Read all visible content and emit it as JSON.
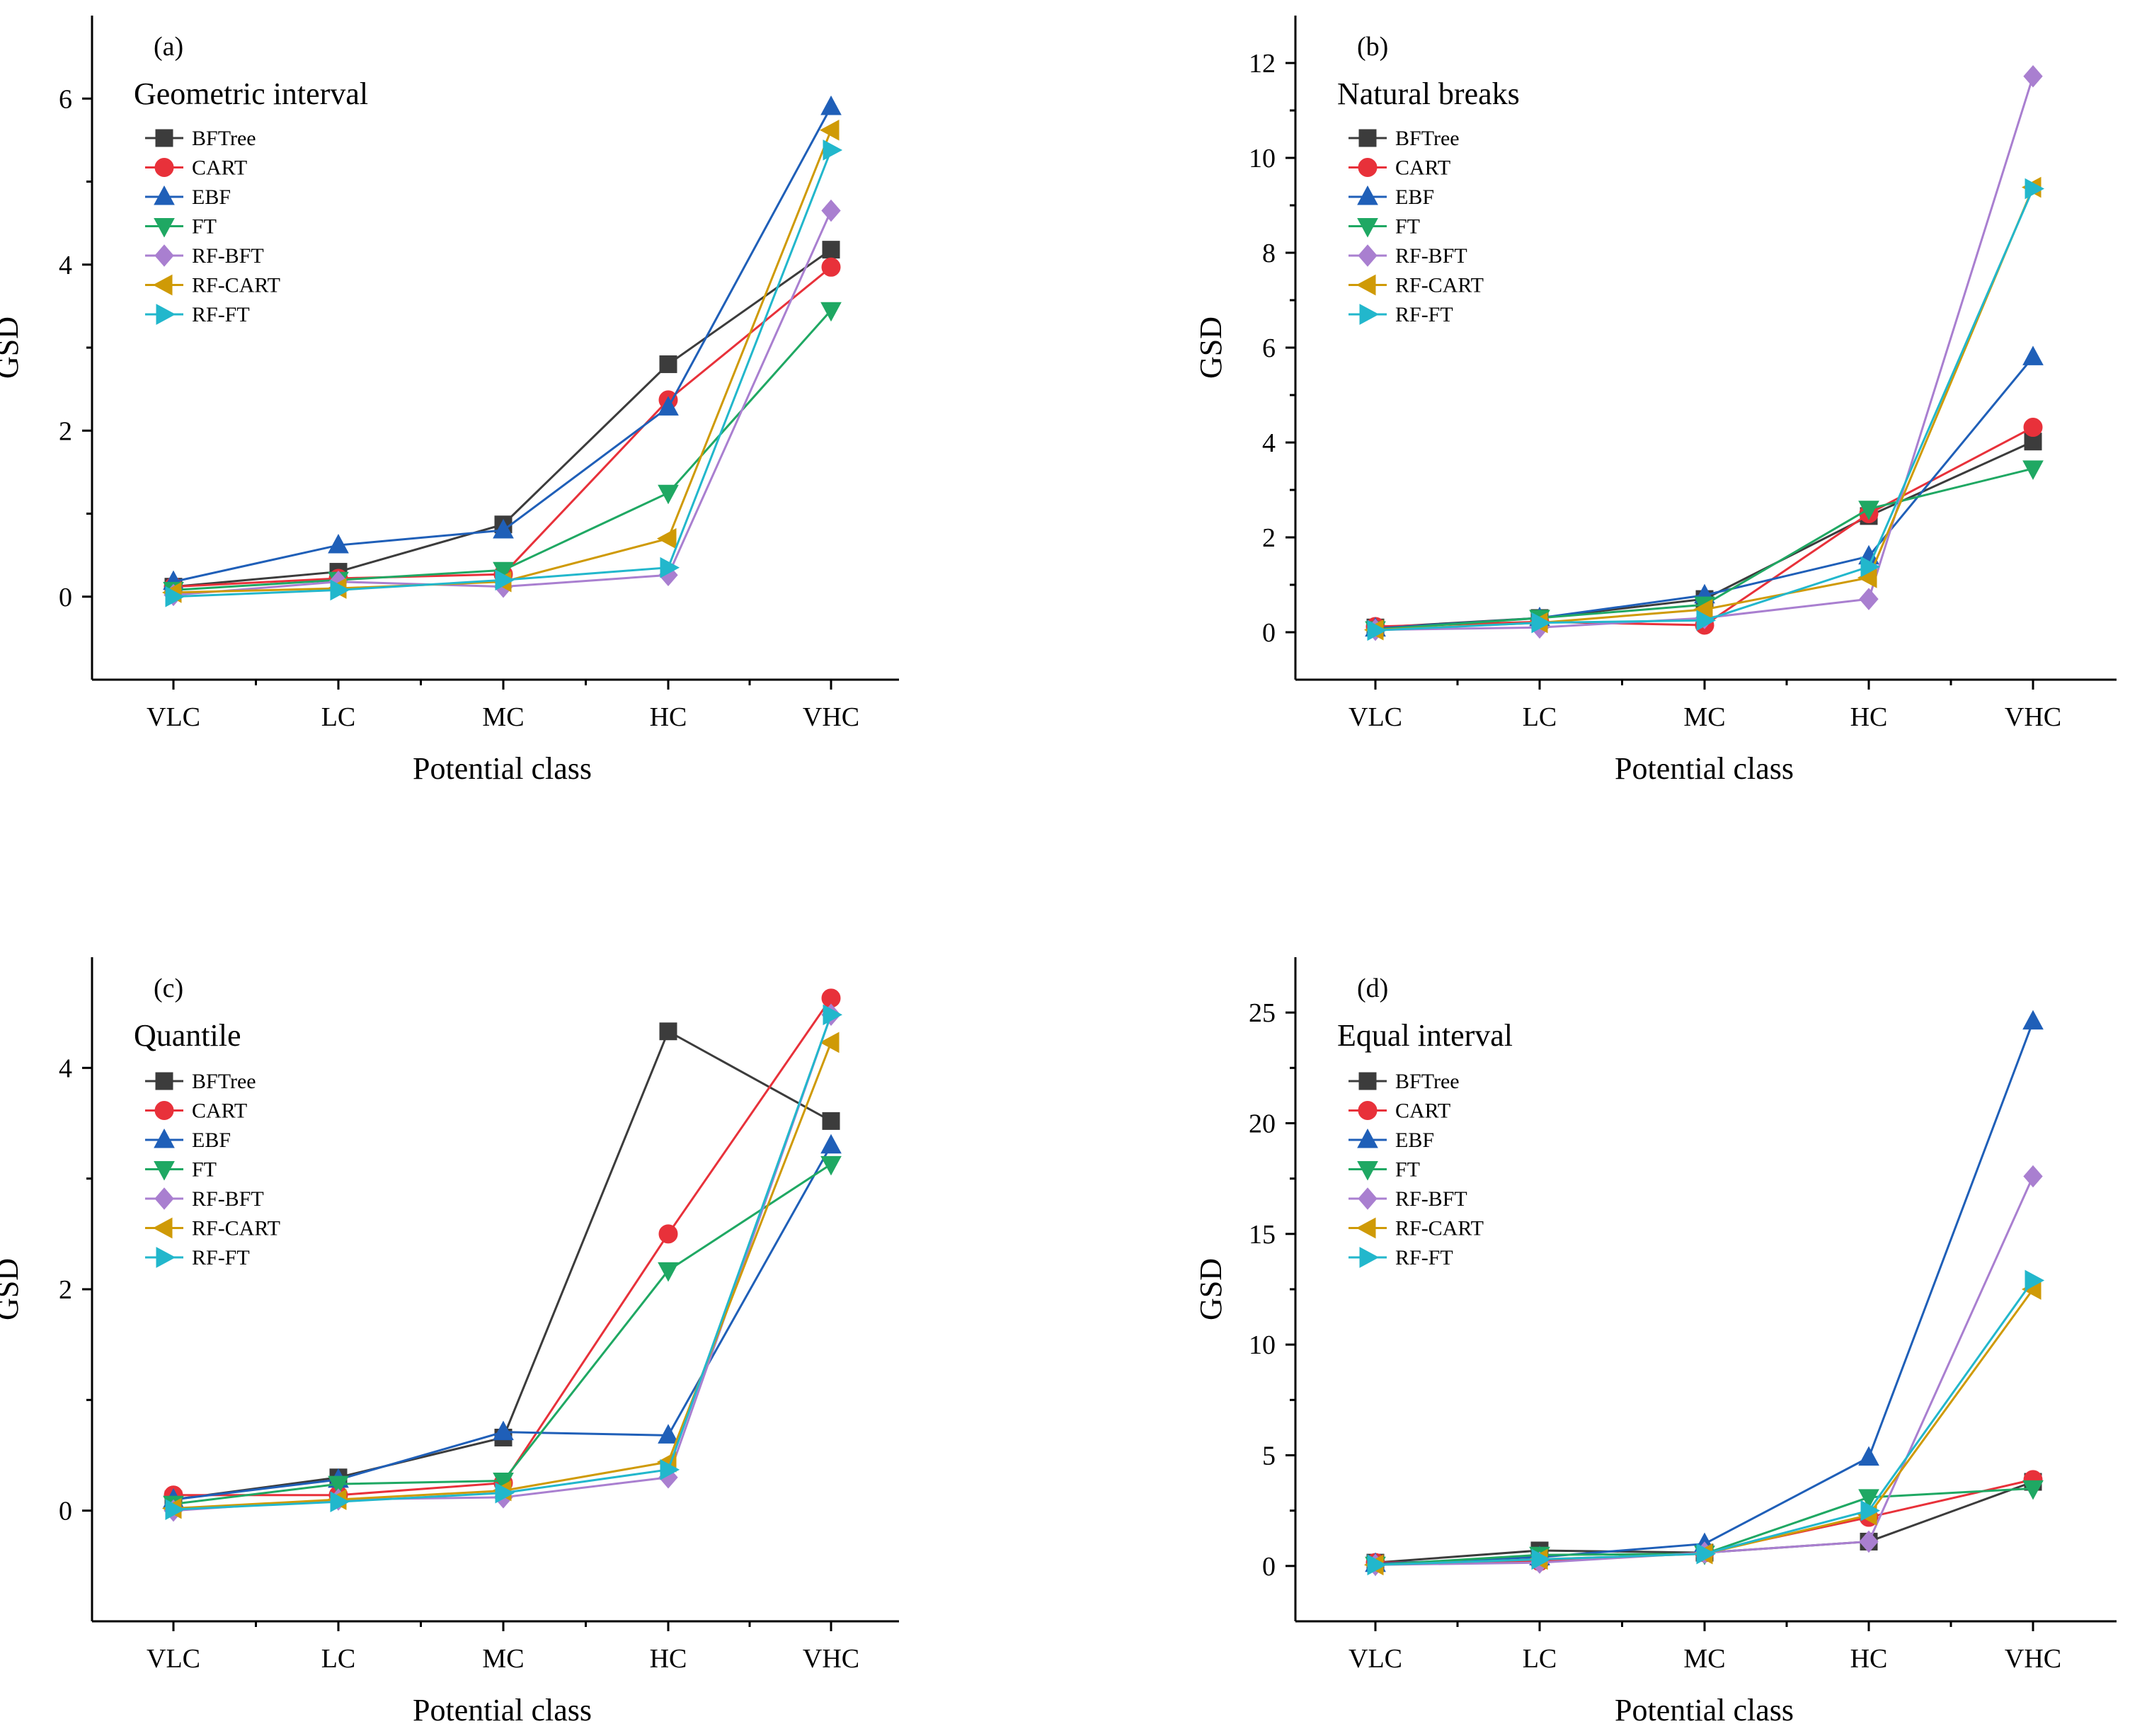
{
  "colors": {
    "BFTree": "#3c3c3c",
    "CART": "#e8313a",
    "EBF": "#1f5fb8",
    "FT": "#1fa863",
    "RF-BFT": "#a97fd0",
    "RF-CART": "#cf9a06",
    "RF-FT": "#22b7cc"
  },
  "chart_data": [
    {
      "type": "line",
      "panel": "(a)",
      "title": "Geometric interval",
      "xlabel": "Potential class",
      "ylabel": "GSD",
      "categories": [
        "VLC",
        "LC",
        "MC",
        "HC",
        "VHC"
      ],
      "ylim": [
        -1,
        7
      ],
      "yticks": [
        0,
        2,
        4,
        6
      ],
      "yticks_minor": [
        1,
        3,
        5
      ],
      "series": [
        {
          "name": "BFTree",
          "marker": "square",
          "values": [
            0.12,
            0.3,
            0.87,
            2.8,
            4.18
          ]
        },
        {
          "name": "CART",
          "marker": "circle",
          "values": [
            0.12,
            0.22,
            0.27,
            2.37,
            3.97
          ]
        },
        {
          "name": "EBF",
          "marker": "triangle-up",
          "values": [
            0.18,
            0.62,
            0.8,
            2.28,
            5.9
          ]
        },
        {
          "name": "FT",
          "marker": "triangle-down",
          "values": [
            0.08,
            0.2,
            0.32,
            1.25,
            3.45
          ]
        },
        {
          "name": "RF-BFT",
          "marker": "diamond",
          "values": [
            0.02,
            0.18,
            0.12,
            0.26,
            4.65
          ]
        },
        {
          "name": "RF-CART",
          "marker": "triangle-left",
          "values": [
            0.05,
            0.1,
            0.18,
            0.7,
            5.62
          ]
        },
        {
          "name": "RF-FT",
          "marker": "triangle-right",
          "values": [
            0.0,
            0.08,
            0.2,
            0.35,
            5.38
          ]
        }
      ]
    },
    {
      "type": "line",
      "panel": "(b)",
      "title": "Natural breaks",
      "xlabel": "Potential class",
      "ylabel": "GSD",
      "categories": [
        "VLC",
        "LC",
        "MC",
        "HC",
        "VHC"
      ],
      "ylim": [
        -1,
        13
      ],
      "yticks": [
        0,
        2,
        4,
        6,
        8,
        10,
        12
      ],
      "yticks_minor": [
        1,
        3,
        5,
        7,
        9,
        11
      ],
      "series": [
        {
          "name": "BFTree",
          "marker": "square",
          "values": [
            0.1,
            0.3,
            0.7,
            2.45,
            4.02
          ]
        },
        {
          "name": "CART",
          "marker": "circle",
          "values": [
            0.12,
            0.22,
            0.15,
            2.5,
            4.32
          ]
        },
        {
          "name": "EBF",
          "marker": "triangle-up",
          "values": [
            0.08,
            0.3,
            0.78,
            1.6,
            5.8
          ]
        },
        {
          "name": "FT",
          "marker": "triangle-down",
          "values": [
            0.06,
            0.3,
            0.58,
            2.6,
            3.45
          ]
        },
        {
          "name": "RF-BFT",
          "marker": "diamond",
          "values": [
            0.05,
            0.1,
            0.3,
            0.7,
            11.72
          ]
        },
        {
          "name": "RF-CART",
          "marker": "triangle-left",
          "values": [
            0.05,
            0.2,
            0.48,
            1.15,
            9.38
          ]
        },
        {
          "name": "RF-FT",
          "marker": "triangle-right",
          "values": [
            0.04,
            0.2,
            0.25,
            1.38,
            9.35
          ]
        }
      ]
    },
    {
      "type": "line",
      "panel": "(c)",
      "title": "Quantile",
      "xlabel": "Potential class",
      "ylabel": "GSD",
      "categories": [
        "VLC",
        "LC",
        "MC",
        "HC",
        "VHC"
      ],
      "ylim": [
        -1,
        5
      ],
      "yticks": [
        0,
        2,
        4
      ],
      "yticks_minor": [
        1,
        3
      ],
      "series": [
        {
          "name": "BFTree",
          "marker": "square",
          "values": [
            0.1,
            0.3,
            0.66,
            4.33,
            3.52
          ]
        },
        {
          "name": "CART",
          "marker": "circle",
          "values": [
            0.14,
            0.14,
            0.25,
            2.5,
            4.63
          ]
        },
        {
          "name": "EBF",
          "marker": "triangle-up",
          "values": [
            0.1,
            0.28,
            0.71,
            0.68,
            3.3
          ]
        },
        {
          "name": "FT",
          "marker": "triangle-down",
          "values": [
            0.06,
            0.24,
            0.27,
            2.17,
            3.13
          ]
        },
        {
          "name": "RF-BFT",
          "marker": "diamond",
          "values": [
            0.0,
            0.1,
            0.12,
            0.3,
            4.48
          ]
        },
        {
          "name": "RF-CART",
          "marker": "triangle-left",
          "values": [
            0.02,
            0.1,
            0.18,
            0.44,
            4.23
          ]
        },
        {
          "name": "RF-FT",
          "marker": "triangle-right",
          "values": [
            0.01,
            0.08,
            0.16,
            0.37,
            4.48
          ]
        }
      ]
    },
    {
      "type": "line",
      "panel": "(d)",
      "title": "Equal interval",
      "xlabel": "Potential class",
      "ylabel": "GSD",
      "categories": [
        "VLC",
        "LC",
        "MC",
        "HC",
        "VHC"
      ],
      "ylim": [
        -2.5,
        27.5
      ],
      "yticks": [
        0,
        5,
        10,
        15,
        20,
        25
      ],
      "yticks_minor": [
        2.5,
        7.5,
        12.5,
        17.5,
        22.5
      ],
      "series": [
        {
          "name": "BFTree",
          "marker": "square",
          "values": [
            0.15,
            0.7,
            0.6,
            1.1,
            3.8
          ]
        },
        {
          "name": "CART",
          "marker": "circle",
          "values": [
            0.15,
            0.2,
            0.6,
            2.2,
            3.9
          ]
        },
        {
          "name": "EBF",
          "marker": "triangle-up",
          "values": [
            0.1,
            0.4,
            1.0,
            4.9,
            24.6
          ]
        },
        {
          "name": "FT",
          "marker": "triangle-down",
          "values": [
            0.05,
            0.5,
            0.55,
            3.1,
            3.5
          ]
        },
        {
          "name": "RF-BFT",
          "marker": "diamond",
          "values": [
            0.05,
            0.15,
            0.6,
            1.1,
            17.6
          ]
        },
        {
          "name": "RF-CART",
          "marker": "triangle-left",
          "values": [
            0.05,
            0.3,
            0.55,
            2.3,
            12.5
          ]
        },
        {
          "name": "RF-FT",
          "marker": "triangle-right",
          "values": [
            0.05,
            0.3,
            0.55,
            2.5,
            12.9
          ]
        }
      ]
    }
  ]
}
